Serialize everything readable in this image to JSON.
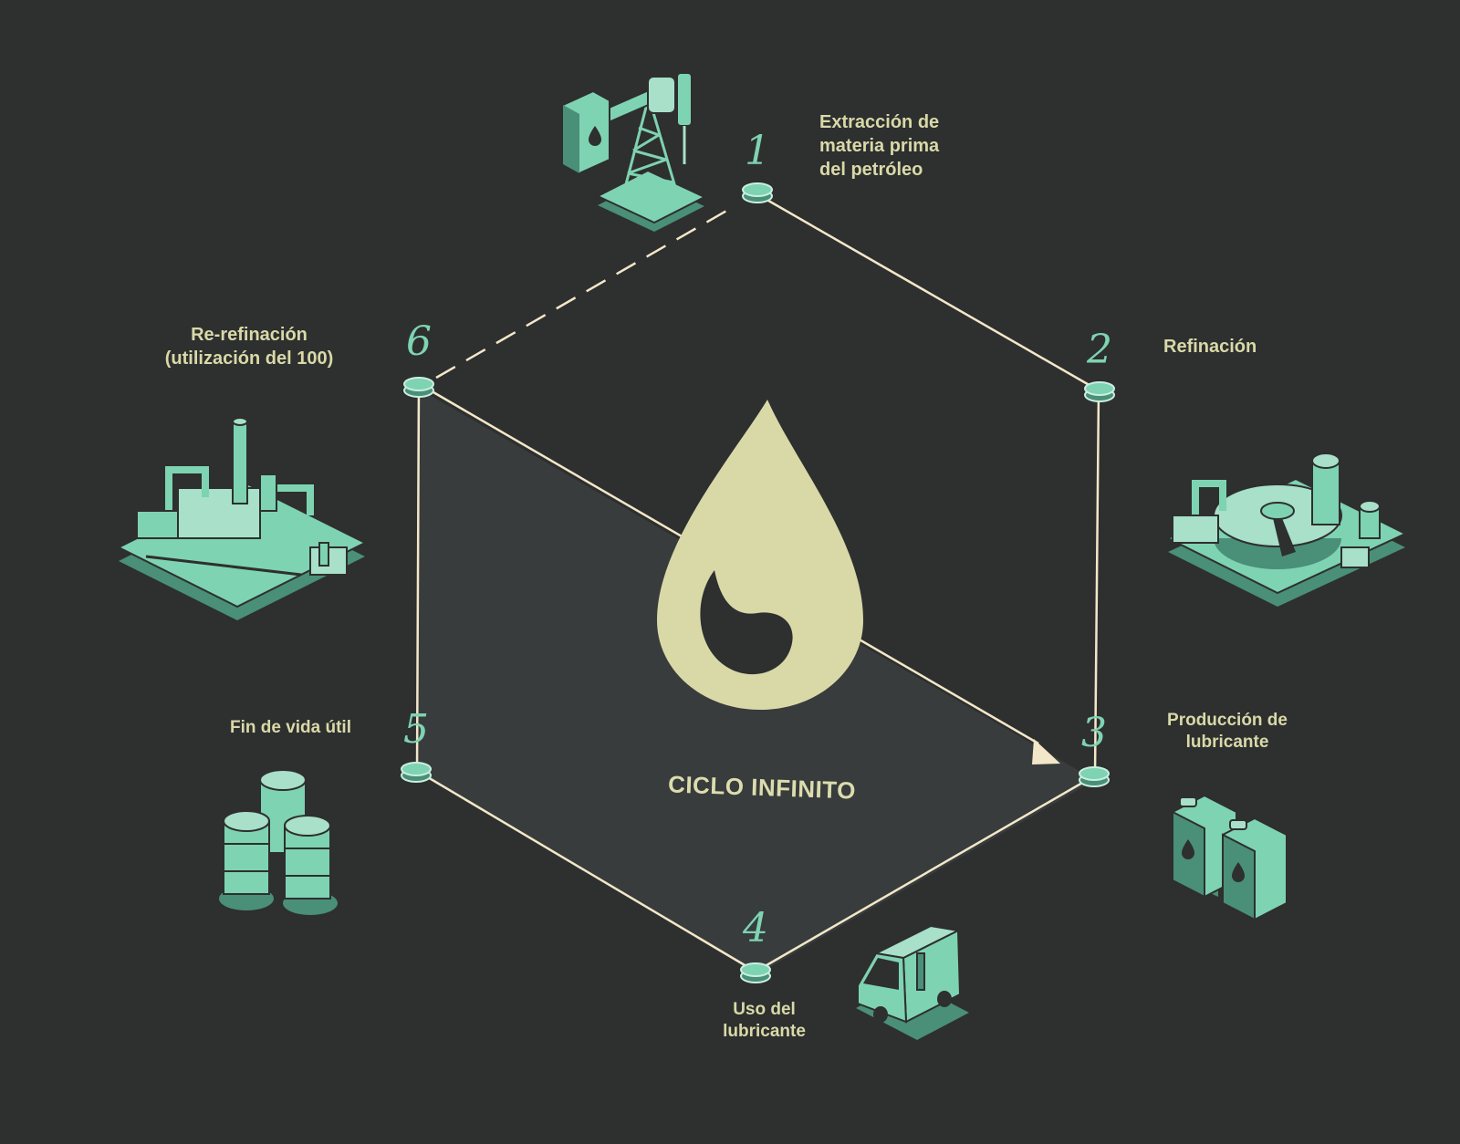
{
  "colors": {
    "background": "#2e2f2f",
    "inner_panel": "#383c3c",
    "connector": "#f3e7c9",
    "accent": "#7ed3b2",
    "accent_light": "#a8e0ca",
    "accent_dark": "#4a8f78",
    "drop": "#d9d9a8",
    "label": "#d9d9a8"
  },
  "center": {
    "title": "CICLO INFINITO",
    "icon": "oil-drop-icon"
  },
  "steps": [
    {
      "number": "1",
      "label": "Extracción de\nmateria prima\ndel petróleo",
      "icon": "oil-pump-icon"
    },
    {
      "number": "2",
      "label": "Refinación",
      "icon": "refinery-icon"
    },
    {
      "number": "3",
      "label": "Producción de\nlubricante",
      "icon": "jerrycans-icon"
    },
    {
      "number": "4",
      "label": "Uso del\nlubricante",
      "icon": "delivery-truck-icon"
    },
    {
      "number": "5",
      "label": "Fin de vida útil",
      "icon": "barrels-icon"
    },
    {
      "number": "6",
      "label": "Re-refinación\n(utilización del 100)",
      "icon": "re-refinery-icon"
    }
  ]
}
